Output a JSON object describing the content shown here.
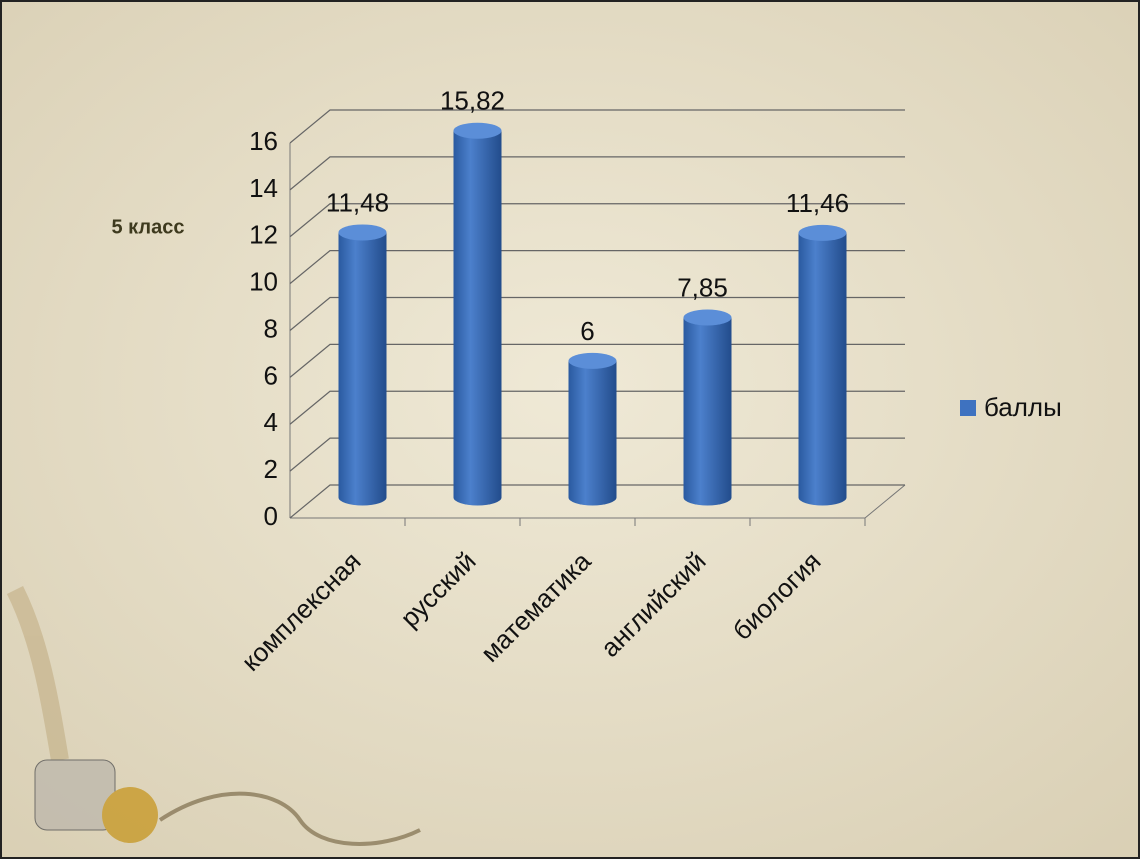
{
  "chart_data": {
    "type": "bar",
    "ylabel": "5 класс",
    "categories": [
      "комплексная",
      "русский",
      "математика",
      "английский",
      "биология"
    ],
    "series": [
      {
        "name": "баллы",
        "color": "#3e72c0",
        "values": [
          11.48,
          15.82,
          6,
          7.85,
          11.46
        ],
        "value_labels": [
          "11,48",
          "15,82",
          "6",
          "7,85",
          "11,46"
        ]
      }
    ],
    "ylim": [
      0,
      16
    ],
    "yticks": [
      0,
      2,
      4,
      6,
      8,
      10,
      12,
      14,
      16
    ],
    "grid": true,
    "legend": "right"
  }
}
